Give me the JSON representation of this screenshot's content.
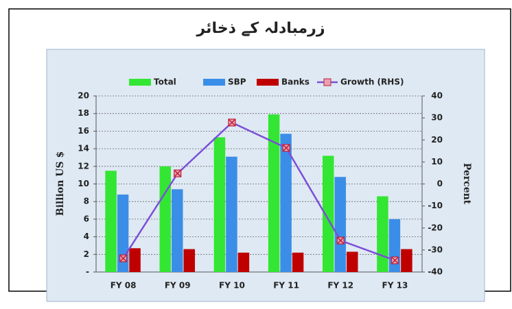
{
  "chart_data": {
    "type": "bar",
    "title": "زرمبادلہ کے ذخائر",
    "categories": [
      "FY 08",
      "FY 09",
      "FY 10",
      "FY 11",
      "FY 12",
      "FY 13"
    ],
    "series": [
      {
        "name": "Total",
        "color": "#33e633",
        "values": [
          11.5,
          12.0,
          15.3,
          17.9,
          13.2,
          8.6
        ]
      },
      {
        "name": "SBP",
        "color": "#3b8ee8",
        "values": [
          8.8,
          9.4,
          13.1,
          15.7,
          10.8,
          6.0
        ]
      },
      {
        "name": "Banks",
        "color": "#c00000",
        "values": [
          2.7,
          2.6,
          2.2,
          2.2,
          2.3,
          2.6
        ]
      },
      {
        "name": "Growth (RHS)",
        "color": "#7b4fd8",
        "type": "line",
        "axis": "y2",
        "values": [
          -33.8,
          4.8,
          27.9,
          16.4,
          -25.7,
          -34.7
        ]
      }
    ],
    "ylabel": "Billion US $",
    "y2label": "Percent",
    "ylim": [
      0,
      20
    ],
    "yticks": [
      {
        "value": 0,
        "label": "-"
      },
      2,
      4,
      6,
      8,
      10,
      12,
      14,
      16,
      18,
      20
    ],
    "y2lim": [
      -40,
      40
    ],
    "y2ticks": [
      -40,
      -30,
      -20,
      -10,
      0,
      10,
      20,
      30,
      40
    ],
    "grid": true,
    "legend": "top"
  }
}
